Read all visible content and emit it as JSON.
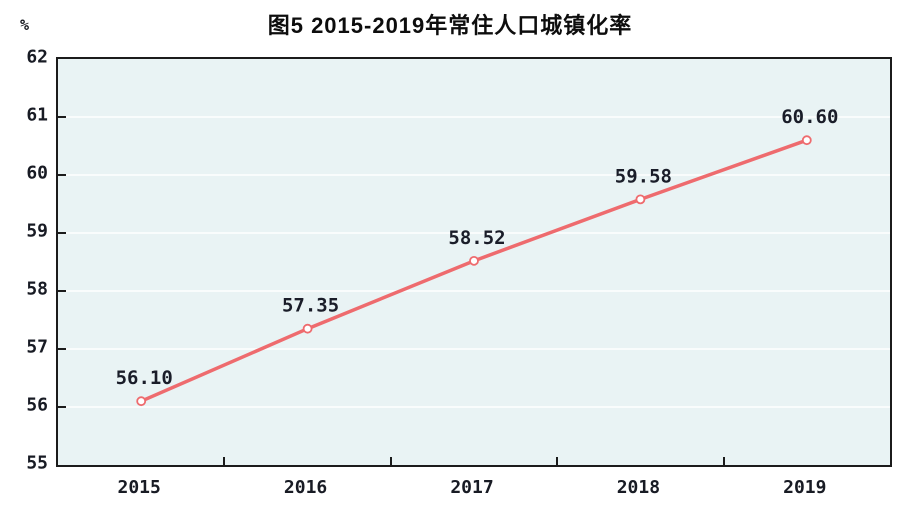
{
  "title": "图5  2015-2019年常住人口城镇化率",
  "unit_label": "%",
  "colors": {
    "line": "#ee6b6e",
    "marker_fill": "#ffffff",
    "plot_background": "#e9f3f4",
    "gridline": "#fbfdfd",
    "axis_border": "#1b1b1b",
    "text": "#181b24",
    "title_text": "#0d0d0d"
  },
  "chart_data": {
    "type": "line",
    "title": "图5  2015-2019年常住人口城镇化率",
    "ylabel": "%",
    "xlabel": "",
    "categories": [
      "2015",
      "2016",
      "2017",
      "2018",
      "2019"
    ],
    "values": [
      56.1,
      57.35,
      58.52,
      59.58,
      60.6
    ],
    "point_labels": [
      "56.10",
      "57.35",
      "58.52",
      "59.58",
      "60.60"
    ],
    "ylim": [
      55,
      62
    ],
    "ytick_step": 1,
    "ytick_labels": [
      "62",
      "61",
      "60",
      "59",
      "58",
      "57",
      "56",
      "55"
    ],
    "grid": true,
    "legend": "none",
    "marker": "open-circle",
    "line_color": "#ee6b6e"
  }
}
